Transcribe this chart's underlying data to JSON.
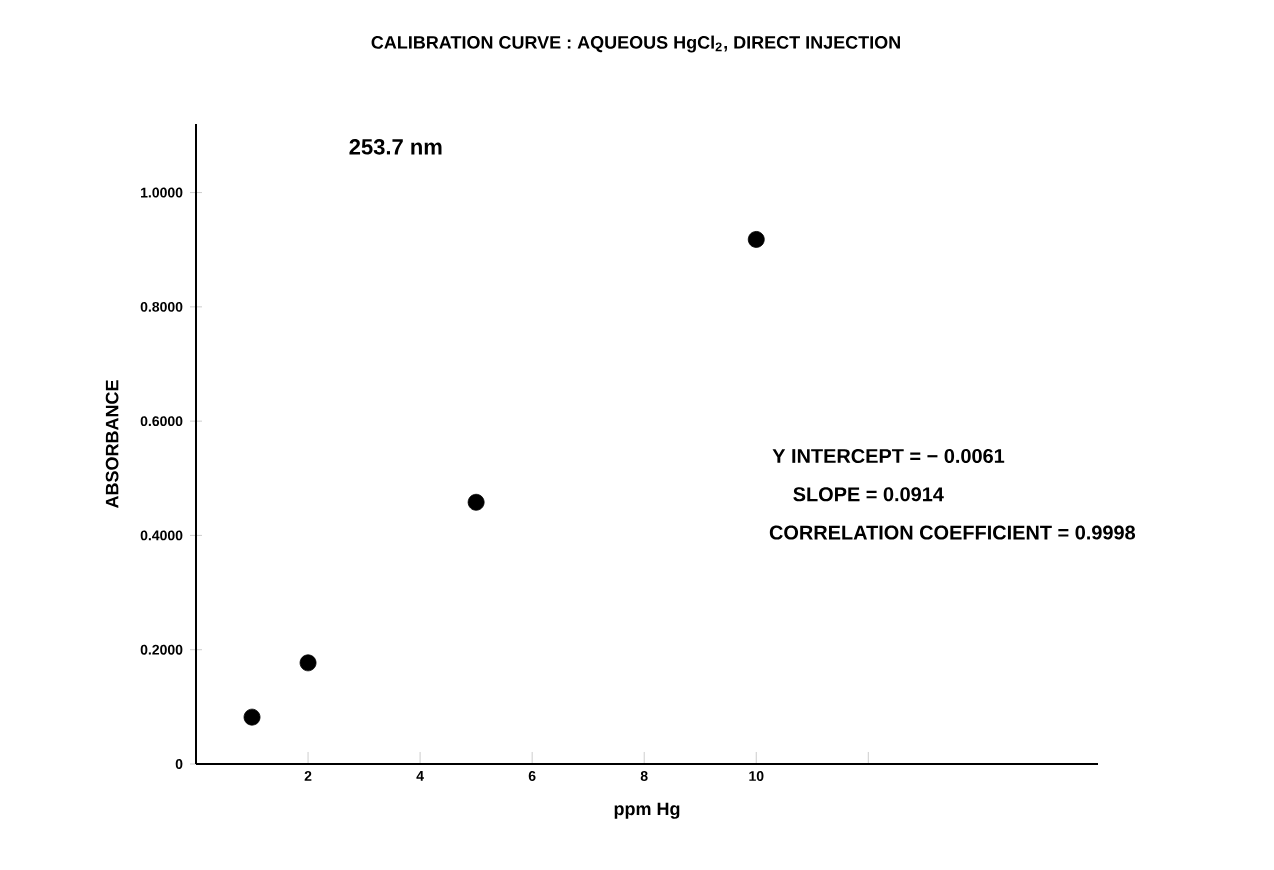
{
  "chart_data": {
    "type": "scatter",
    "title": "CALIBRATION CURVE : AQUEOUS HgCl$_{2}$, DIRECT INJECTION",
    "xlabel": "ppm Hg",
    "ylabel": "ABSORBANCE",
    "annotations": [
      "253.7 nm",
      "Y INTERCEPT = − 0.0061",
      "SLOPE = 0.0914",
      "CORRELATION COEFFICIENT = 0.9998"
    ],
    "x": [
      1,
      2,
      5,
      10
    ],
    "values": [
      0.082,
      0.177,
      0.458,
      0.918
    ],
    "color": "#000000",
    "marker": "circle",
    "grid": false,
    "xlim": [
      0,
      16.1
    ],
    "ylim": [
      0,
      1.12
    ],
    "xticks": [
      2,
      4,
      6,
      8,
      10,
      {
        "value": 12,
        "label": null
      }
    ],
    "yticks": [
      0,
      {
        "value": 0.2,
        "label": "0.2000"
      },
      {
        "value": 0.4,
        "label": "0.4000"
      },
      {
        "value": 0.6,
        "label": "0.6000"
      },
      {
        "value": 0.8,
        "label": "0.8000"
      },
      {
        "value": 1.0,
        "label": "1.0000"
      }
    ]
  }
}
